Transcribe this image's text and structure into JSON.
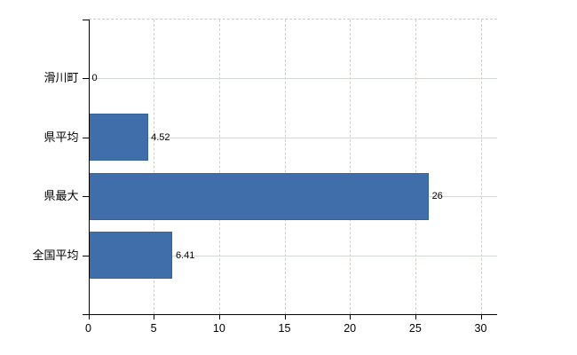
{
  "chart_data": {
    "type": "bar",
    "orientation": "horizontal",
    "title": "",
    "xlabel": "",
    "ylabel": "",
    "categories": [
      "滑川町",
      "県平均",
      "県最大",
      "全国平均"
    ],
    "values": [
      0,
      4.52,
      26,
      6.41
    ],
    "value_labels": [
      "0",
      "4.52",
      "26",
      "6.41"
    ],
    "x_ticks": [
      0,
      5,
      10,
      15,
      20,
      25,
      30
    ],
    "x_tick_labels": [
      "0",
      "5",
      "10",
      "15",
      "20",
      "25",
      "30"
    ],
    "xlim": [
      0,
      31.2
    ],
    "grid": true,
    "legend_position": "none",
    "colors": {
      "bar_fill": "#3f6eab",
      "bar_border": "#35639d",
      "axis": "#000000",
      "gridline_vertical": "#d2cfca",
      "gridline_horizontal": "#d3dad3",
      "text": "#000000",
      "background": "#ffffff"
    }
  }
}
